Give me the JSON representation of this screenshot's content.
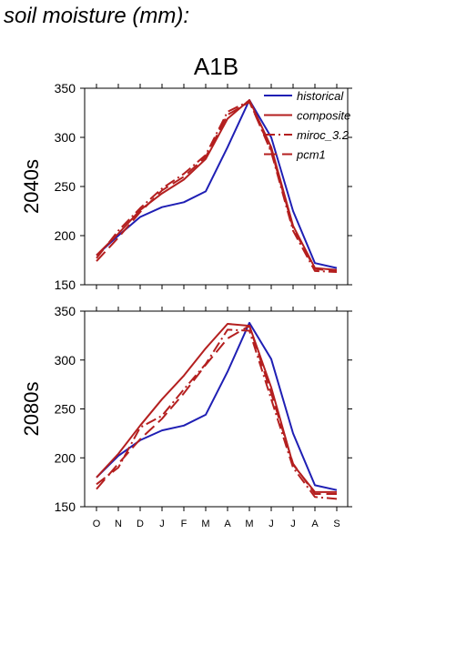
{
  "page": {
    "title": "soil moisture (mm):"
  },
  "chart_data": {
    "type": "line",
    "title": "A1B",
    "categories": [
      "O",
      "N",
      "D",
      "J",
      "F",
      "M",
      "A",
      "M",
      "J",
      "J",
      "A",
      "S"
    ],
    "ylim": [
      150,
      350
    ],
    "yticks": [
      150,
      200,
      250,
      300,
      350
    ],
    "grid": false,
    "legend": {
      "placement": "top-right",
      "entries": [
        {
          "name": "historical",
          "color": "#1f1fb4",
          "dash": "solid"
        },
        {
          "name": "composite",
          "color": "#b41f1f",
          "dash": "solid"
        },
        {
          "name": "miroc_3.2",
          "color": "#b41f1f",
          "dash": "dashdot"
        },
        {
          "name": "pcm1",
          "color": "#b41f1f",
          "dash": "dashed"
        }
      ]
    },
    "panels": [
      {
        "ylabel": "2040s",
        "series": [
          {
            "name": "historical",
            "color": "#1f1fb4",
            "dash": "solid",
            "values": [
              180,
              200,
              219,
              229,
              234,
              245,
              290,
              338,
              300,
              225,
              172,
              167
            ]
          },
          {
            "name": "composite",
            "color": "#b41f1f",
            "dash": "solid",
            "values": [
              180,
              202,
              226,
              243,
              257,
              278,
              319,
              338,
              290,
              210,
              167,
              165
            ]
          },
          {
            "name": "miroc_3.2",
            "color": "#b41f1f",
            "dash": "dashdot",
            "values": [
              177,
              205,
              228,
              248,
              263,
              282,
              326,
              337,
              285,
              205,
              164,
              163
            ]
          },
          {
            "name": "pcm1",
            "color": "#b41f1f",
            "dash": "dashed",
            "values": [
              174,
              198,
              224,
              246,
              260,
              280,
              323,
              336,
              287,
              208,
              166,
              164
            ]
          }
        ]
      },
      {
        "ylabel": "2080s",
        "series": [
          {
            "name": "historical",
            "color": "#1f1fb4",
            "dash": "solid",
            "values": [
              180,
              202,
              218,
              228,
              233,
              244,
              288,
              338,
              301,
              225,
              172,
              167
            ]
          },
          {
            "name": "composite",
            "color": "#b41f1f",
            "dash": "solid",
            "values": [
              180,
              204,
              233,
              260,
              284,
              312,
              337,
              335,
              272,
              193,
              165,
              165
            ]
          },
          {
            "name": "miroc_3.2",
            "color": "#b41f1f",
            "dash": "dashdot",
            "values": [
              173,
              190,
              231,
              243,
              270,
              296,
              331,
              330,
              260,
              190,
              160,
              158
            ]
          },
          {
            "name": "pcm1",
            "color": "#b41f1f",
            "dash": "dashed",
            "values": [
              168,
              194,
              219,
              240,
              266,
              295,
              322,
              335,
              266,
              194,
              163,
              163
            ]
          }
        ]
      }
    ]
  }
}
